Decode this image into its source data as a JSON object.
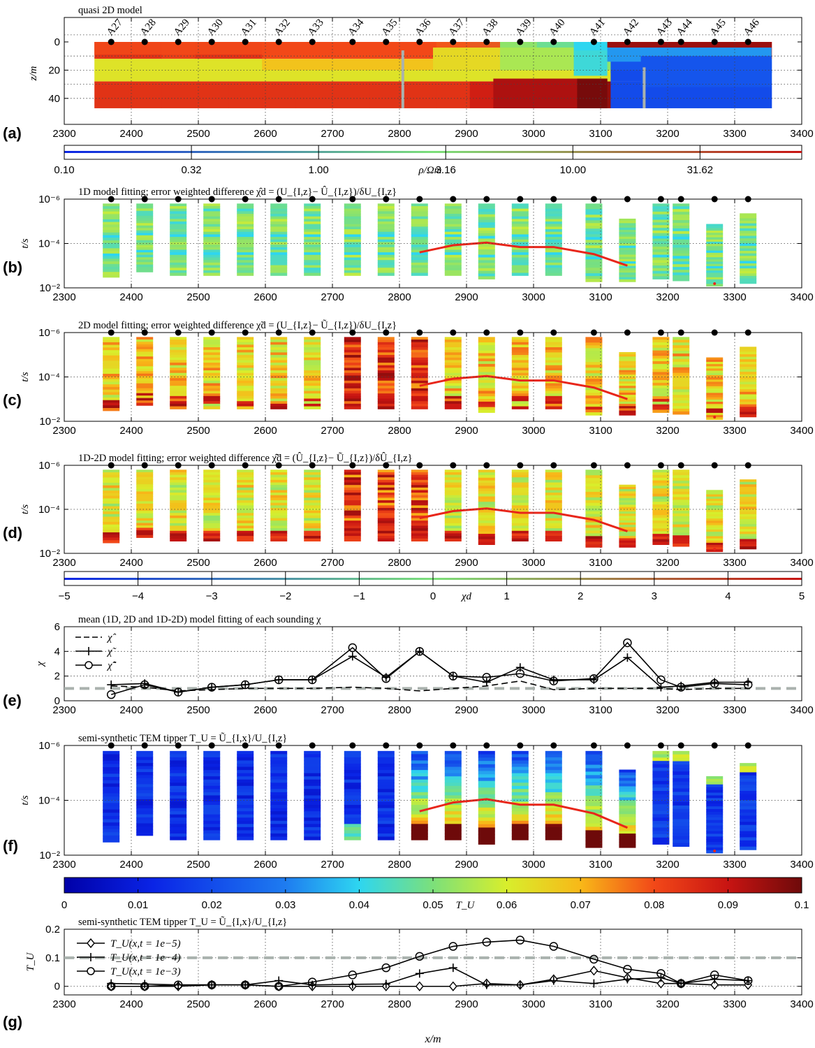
{
  "x_ticks": [
    2300,
    2400,
    2500,
    2600,
    2700,
    2800,
    2900,
    3000,
    3100,
    3200,
    3300,
    3400
  ],
  "x_range": [
    2300,
    3400
  ],
  "stations": [
    "A27",
    "A28",
    "A29",
    "A30",
    "A31",
    "A32",
    "A33",
    "A34",
    "A35",
    "A36",
    "A37",
    "A38",
    "A39",
    "A40",
    "A41",
    "A42",
    "A43",
    "A44",
    "A45",
    "A46"
  ],
  "station_x": [
    2370,
    2420,
    2470,
    2520,
    2570,
    2620,
    2670,
    2730,
    2780,
    2830,
    2880,
    2930,
    2980,
    3030,
    3090,
    3140,
    3190,
    3220,
    3270,
    3320
  ],
  "colors": {
    "red_line": "#e8261a",
    "gray_dash": "#aab2ae",
    "dot": "#000000"
  },
  "panels": {
    "a": {
      "label": "(a)",
      "title": "quasi 2D model",
      "ylabel": "z/m",
      "yticks": [
        "0",
        "20",
        "40"
      ]
    },
    "a_cbar": {
      "ticks": [
        "0.10",
        "0.32",
        "1.00",
        "3.16",
        "10.00",
        "31.62"
      ],
      "label": "ρ/Ωm"
    },
    "b": {
      "label": "(b)",
      "title": "1D model fitting; error weighted difference χ̂d = (U_{I,z}− Û_{I,z})/δU_{I,z}",
      "ylabel": "t/s"
    },
    "c": {
      "label": "(c)",
      "title": "2D model fitting; error weighted difference χ̃d = (U_{I,z}− Ũ_{I,z})/δU_{I,z}",
      "ylabel": "t/s"
    },
    "d": {
      "label": "(d)",
      "title": "1D-2D model fitting; error weighted difference χ̂̃d = (Û_{I,z}− Ũ_{I,z})/δÛ_{I,z}",
      "ylabel": "t/s"
    },
    "d_cbar": {
      "ticks": [
        "−5",
        "−4",
        "−3",
        "−2",
        "−1",
        "0",
        "1",
        "2",
        "3",
        "4",
        "5"
      ],
      "label": "χd"
    },
    "e": {
      "label": "(e)",
      "title": "mean (1D, 2D and 1D-2D) model fitting of each sounding χ",
      "ylabel": "χ",
      "yticks": [
        "0",
        "2",
        "4",
        "6"
      ],
      "legend": [
        "χ̂",
        "χ̃",
        "χ̂̃"
      ]
    },
    "f": {
      "label": "(f)",
      "title": "semi-synthetic TEM tipper T_U = Ũ_{I,x}/U_{I,z}",
      "ylabel": "t/s"
    },
    "f_cbar": {
      "ticks": [
        "0",
        "0.01",
        "0.02",
        "0.03",
        "0.04",
        "0.05",
        "0.06",
        "0.07",
        "0.08",
        "0.09",
        "0.1"
      ],
      "label": "T_U"
    },
    "g": {
      "label": "(g)",
      "title": "semi-synthetic TEM tipper T_U = Ũ_{I,x}/U_{I,z}",
      "ylabel": "T_U",
      "yticks": [
        "0",
        "0.1",
        "0.2"
      ],
      "xlabel": "x/m",
      "legend": [
        "T_U(x,t = 1e−5)",
        "T_U(x,t = 1e−4)",
        "T_U(x,t = 1e−3)"
      ]
    }
  },
  "time_ticks": [
    "10⁻⁶",
    "10⁻⁴",
    "10⁻²"
  ],
  "chart_data": [
    {
      "type": "heatmap",
      "panel": "a",
      "title": "quasi 2D model",
      "ylabel": "z/m",
      "ylim": [
        0,
        50
      ],
      "x": [
        2370,
        2420,
        2470,
        2520,
        2570,
        2620,
        2670,
        2730,
        2780,
        2830,
        2880,
        2930,
        2980,
        3030,
        3090,
        3140,
        3190,
        3220,
        3270,
        3320
      ],
      "log10_rho_top_layer": [
        1.1,
        1.1,
        1.05,
        1.1,
        1.1,
        1.0,
        1.0,
        1.0,
        1.0,
        1.0,
        0.6,
        0.3,
        0.3,
        0.2,
        0.0,
        1.1,
        1.3,
        1.3,
        1.3,
        1.3
      ],
      "log10_rho_bottom_layer": [
        1.1,
        1.1,
        1.1,
        1.1,
        1.1,
        1.1,
        1.1,
        1.1,
        1.1,
        1.1,
        1.1,
        1.2,
        1.3,
        1.3,
        1.4,
        -0.5,
        -0.5,
        -0.5,
        -0.5,
        -0.5
      ]
    },
    {
      "type": "line",
      "panel": "e",
      "xlabel": "",
      "ylabel": "χ",
      "ylim": [
        0,
        6
      ],
      "x": [
        2370,
        2420,
        2470,
        2520,
        2570,
        2620,
        2670,
        2730,
        2780,
        2830,
        2880,
        2930,
        2980,
        3030,
        3090,
        3140,
        3190,
        3220,
        3270,
        3320
      ],
      "series": [
        {
          "name": "χ̂",
          "values": [
            1.2,
            1.1,
            0.8,
            0.9,
            1.0,
            1.0,
            1.0,
            1.1,
            1.0,
            0.8,
            1.0,
            1.2,
            1.6,
            0.9,
            1.0,
            1.0,
            1.0,
            0.9,
            1.0,
            1.0
          ]
        },
        {
          "name": "χ̃",
          "values": [
            1.3,
            1.4,
            0.7,
            1.1,
            1.3,
            1.7,
            1.7,
            3.6,
            1.9,
            4.0,
            2.0,
            1.5,
            2.7,
            1.7,
            1.7,
            3.5,
            1.1,
            1.2,
            1.5,
            1.5
          ]
        },
        {
          "name": "χ̂̃",
          "values": [
            0.5,
            1.3,
            0.7,
            1.1,
            1.3,
            1.7,
            1.7,
            4.3,
            1.8,
            4.0,
            2.0,
            1.9,
            2.2,
            1.6,
            1.8,
            4.7,
            1.7,
            1.1,
            1.4,
            1.3
          ]
        }
      ],
      "reference_line": 1.0
    },
    {
      "type": "line",
      "panel": "g",
      "xlabel": "x/m",
      "ylabel": "T_U",
      "ylim": [
        -0.03,
        0.2
      ],
      "x": [
        2370,
        2420,
        2470,
        2520,
        2570,
        2620,
        2670,
        2730,
        2780,
        2830,
        2880,
        2930,
        2980,
        3030,
        3090,
        3140,
        3190,
        3220,
        3270,
        3320
      ],
      "series": [
        {
          "name": "T_U(x,t = 1e−5)",
          "values": [
            0.0,
            0.0,
            0.0,
            0.005,
            0.005,
            0.0,
            0.0,
            0.0,
            0.0,
            0.0,
            0.0,
            0.01,
            0.005,
            0.025,
            0.055,
            0.03,
            0.01,
            0.01,
            0.005,
            0.005
          ]
        },
        {
          "name": "T_U(x,t = 1e−4)",
          "values": [
            0.01,
            0.008,
            0.005,
            0.005,
            0.005,
            0.02,
            0.005,
            0.007,
            0.008,
            0.045,
            0.065,
            0.005,
            0.005,
            0.02,
            0.01,
            0.025,
            0.03,
            0.01,
            0.025,
            0.02
          ]
        },
        {
          "name": "T_U(x,t = 1e−3)",
          "values": [
            0.0,
            0.0,
            0.005,
            0.005,
            0.005,
            0.0,
            0.015,
            0.04,
            0.065,
            0.105,
            0.14,
            0.155,
            0.162,
            0.14,
            0.095,
            0.06,
            0.045,
            0.01,
            0.04,
            0.02
          ]
        }
      ],
      "reference_line": 0.1
    }
  ]
}
